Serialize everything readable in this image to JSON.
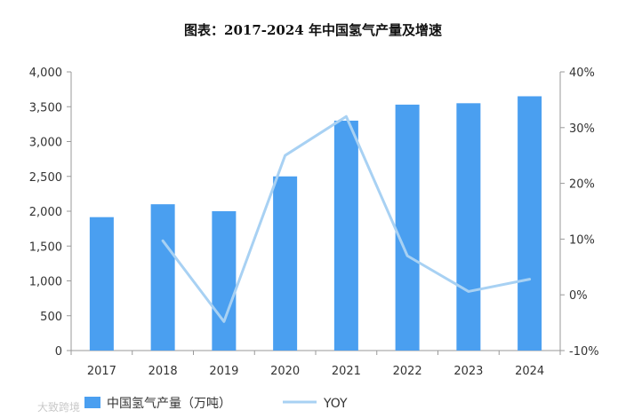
{
  "watermark": "大致跨境",
  "chart_data": {
    "type": "bar+line",
    "title": "图表：2017-2024 年中国氢气产量及增速",
    "categories": [
      "2017",
      "2018",
      "2019",
      "2020",
      "2021",
      "2022",
      "2023",
      "2024"
    ],
    "series": [
      {
        "name": "中国氢气产量（万吨）",
        "type": "bar",
        "axis": "left",
        "color": "#4a9ff0",
        "values": [
          1915,
          2100,
          2000,
          2500,
          3300,
          3530,
          3550,
          3650
        ]
      },
      {
        "name": "YOY",
        "type": "line",
        "axis": "right",
        "color": "#a8d1f3",
        "values": [
          null,
          9.7,
          -4.8,
          25.0,
          32.0,
          7.0,
          0.6,
          2.8
        ]
      }
    ],
    "y_left": {
      "min": 0,
      "max": 4000,
      "ticks": [
        "0",
        "500",
        "1,000",
        "1,500",
        "2,000",
        "2,500",
        "3,000",
        "3,500",
        "4,000"
      ]
    },
    "y_right": {
      "min": -10,
      "max": 40,
      "ticks": [
        "-10%",
        "0%",
        "10%",
        "20%",
        "30%",
        "40%"
      ]
    },
    "grid": false,
    "legend_position": "bottom"
  }
}
